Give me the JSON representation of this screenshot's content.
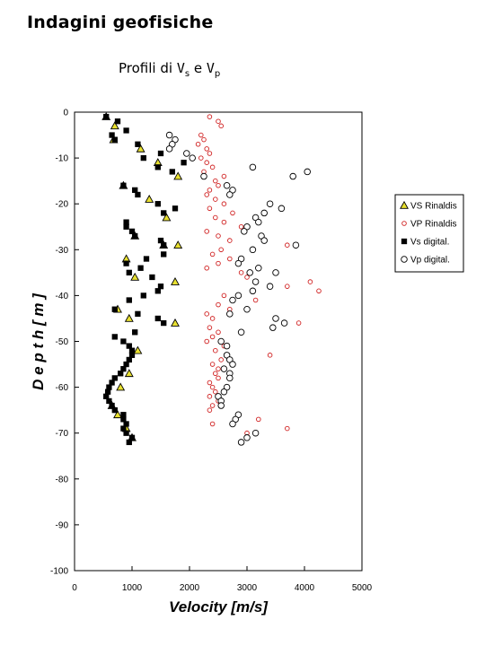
{
  "header": {
    "title": "Indagini geofisiche",
    "subtitle_prefix": "Profili di ",
    "vs_main": "V",
    "vs_sub": "s",
    "joiner": " e ",
    "vp_main": "V",
    "vp_sub": "p"
  },
  "chart_data": {
    "type": "scatter",
    "xlabel": "Velocity [m/s]",
    "ylabel": "D e p t h  [ m ]",
    "xlim": [
      0,
      5000
    ],
    "ylim": [
      -100,
      0
    ],
    "xticks": [
      "0",
      "1000",
      "2000",
      "3000",
      "4000",
      "5000"
    ],
    "yticks": [
      "0",
      "-10",
      "-20",
      "-30",
      "-40",
      "-50",
      "-60",
      "-70",
      "-80",
      "-90",
      "-100"
    ],
    "grid": false,
    "legend_position": "right",
    "series": [
      {
        "name": "VS Rinaldis",
        "marker": "triangle",
        "color": "#e8e030",
        "edge": "#000000",
        "points": [
          [
            550,
            -1
          ],
          [
            700,
            -3
          ],
          [
            680,
            -6
          ],
          [
            1150,
            -8
          ],
          [
            1450,
            -11
          ],
          [
            1800,
            -14
          ],
          [
            850,
            -16
          ],
          [
            1300,
            -19
          ],
          [
            1600,
            -23
          ],
          [
            1050,
            -27
          ],
          [
            1550,
            -29
          ],
          [
            1800,
            -29
          ],
          [
            900,
            -32
          ],
          [
            1050,
            -36
          ],
          [
            1750,
            -37
          ],
          [
            750,
            -43
          ],
          [
            950,
            -45
          ],
          [
            1750,
            -46
          ],
          [
            1100,
            -52
          ],
          [
            950,
            -57
          ],
          [
            800,
            -60
          ],
          [
            650,
            -64
          ],
          [
            750,
            -66
          ],
          [
            900,
            -69
          ],
          [
            1000,
            -71
          ]
        ]
      },
      {
        "name": "VP Rinaldis",
        "marker": "circle",
        "color": "#ffffff",
        "edge": "#d02020",
        "points": [
          [
            2350,
            -1
          ],
          [
            2500,
            -2
          ],
          [
            2550,
            -3
          ],
          [
            2200,
            -5
          ],
          [
            2250,
            -6
          ],
          [
            2150,
            -7
          ],
          [
            2300,
            -8
          ],
          [
            2350,
            -9
          ],
          [
            2200,
            -10
          ],
          [
            2300,
            -11
          ],
          [
            2400,
            -12
          ],
          [
            2250,
            -13
          ],
          [
            2600,
            -14
          ],
          [
            2450,
            -15
          ],
          [
            2500,
            -16
          ],
          [
            2350,
            -17
          ],
          [
            2300,
            -18
          ],
          [
            2450,
            -19
          ],
          [
            2600,
            -20
          ],
          [
            2350,
            -21
          ],
          [
            2750,
            -22
          ],
          [
            2450,
            -23
          ],
          [
            2600,
            -24
          ],
          [
            2900,
            -25
          ],
          [
            2300,
            -26
          ],
          [
            2500,
            -27
          ],
          [
            2700,
            -28
          ],
          [
            3700,
            -29
          ],
          [
            2550,
            -30
          ],
          [
            2400,
            -31
          ],
          [
            2700,
            -32
          ],
          [
            2500,
            -33
          ],
          [
            2300,
            -34
          ],
          [
            2900,
            -35
          ],
          [
            3000,
            -36
          ],
          [
            4100,
            -37
          ],
          [
            3700,
            -38
          ],
          [
            4250,
            -39
          ],
          [
            2600,
            -40
          ],
          [
            3150,
            -41
          ],
          [
            2500,
            -42
          ],
          [
            2700,
            -43
          ],
          [
            2300,
            -44
          ],
          [
            2400,
            -45
          ],
          [
            3900,
            -46
          ],
          [
            2350,
            -47
          ],
          [
            2500,
            -48
          ],
          [
            2400,
            -49
          ],
          [
            2300,
            -50
          ],
          [
            2600,
            -51
          ],
          [
            2450,
            -52
          ],
          [
            3400,
            -53
          ],
          [
            2550,
            -54
          ],
          [
            2400,
            -55
          ],
          [
            2500,
            -56
          ],
          [
            2450,
            -57
          ],
          [
            2500,
            -58
          ],
          [
            2350,
            -59
          ],
          [
            2400,
            -60
          ],
          [
            2450,
            -61
          ],
          [
            2350,
            -62
          ],
          [
            2500,
            -63
          ],
          [
            2400,
            -64
          ],
          [
            2350,
            -65
          ],
          [
            3200,
            -67
          ],
          [
            2400,
            -68
          ],
          [
            3700,
            -69
          ],
          [
            3000,
            -70
          ]
        ]
      },
      {
        "name": "Vs digital.",
        "marker": "square",
        "color": "#000000",
        "edge": "#000000",
        "points": [
          [
            550,
            -1
          ],
          [
            750,
            -2
          ],
          [
            650,
            -5
          ],
          [
            900,
            -4
          ],
          [
            700,
            -6
          ],
          [
            1100,
            -7
          ],
          [
            1200,
            -10
          ],
          [
            1500,
            -9
          ],
          [
            1450,
            -12
          ],
          [
            1900,
            -11
          ],
          [
            1700,
            -13
          ],
          [
            850,
            -16
          ],
          [
            1050,
            -17
          ],
          [
            1100,
            -18
          ],
          [
            1450,
            -20
          ],
          [
            1750,
            -21
          ],
          [
            1550,
            -22
          ],
          [
            900,
            -24
          ],
          [
            900,
            -25
          ],
          [
            1000,
            -26
          ],
          [
            1050,
            -27
          ],
          [
            1500,
            -28
          ],
          [
            1550,
            -29
          ],
          [
            1250,
            -32
          ],
          [
            1550,
            -31
          ],
          [
            900,
            -33
          ],
          [
            950,
            -35
          ],
          [
            1150,
            -34
          ],
          [
            1350,
            -36
          ],
          [
            1500,
            -38
          ],
          [
            1450,
            -39
          ],
          [
            1200,
            -40
          ],
          [
            950,
            -41
          ],
          [
            700,
            -43
          ],
          [
            1100,
            -44
          ],
          [
            1450,
            -45
          ],
          [
            1550,
            -46
          ],
          [
            1050,
            -48
          ],
          [
            700,
            -49
          ],
          [
            850,
            -50
          ],
          [
            950,
            -51
          ],
          [
            1000,
            -52
          ],
          [
            1000,
            -53
          ],
          [
            950,
            -54
          ],
          [
            900,
            -55
          ],
          [
            850,
            -56
          ],
          [
            800,
            -57
          ],
          [
            700,
            -58
          ],
          [
            650,
            -59
          ],
          [
            600,
            -60
          ],
          [
            580,
            -61
          ],
          [
            550,
            -62
          ],
          [
            600,
            -63
          ],
          [
            650,
            -64
          ],
          [
            700,
            -65
          ],
          [
            850,
            -66
          ],
          [
            850,
            -67
          ],
          [
            900,
            -68
          ],
          [
            850,
            -69
          ],
          [
            900,
            -70
          ],
          [
            1000,
            -71
          ],
          [
            950,
            -72
          ]
        ]
      },
      {
        "name": "Vp digital.",
        "marker": "circle",
        "color": "#ffffff",
        "edge": "#000000",
        "points": [
          [
            1650,
            -5
          ],
          [
            1750,
            -6
          ],
          [
            1700,
            -7
          ],
          [
            1650,
            -8
          ],
          [
            1950,
            -9
          ],
          [
            2050,
            -10
          ],
          [
            3100,
            -12
          ],
          [
            4050,
            -13
          ],
          [
            3800,
            -14
          ],
          [
            2250,
            -14
          ],
          [
            2650,
            -16
          ],
          [
            2750,
            -17
          ],
          [
            2700,
            -18
          ],
          [
            3400,
            -20
          ],
          [
            3600,
            -21
          ],
          [
            3300,
            -22
          ],
          [
            3150,
            -23
          ],
          [
            3200,
            -24
          ],
          [
            3000,
            -25
          ],
          [
            2950,
            -26
          ],
          [
            3250,
            -27
          ],
          [
            3300,
            -28
          ],
          [
            3850,
            -29
          ],
          [
            3100,
            -30
          ],
          [
            2900,
            -32
          ],
          [
            2850,
            -33
          ],
          [
            3200,
            -34
          ],
          [
            3050,
            -35
          ],
          [
            3500,
            -35
          ],
          [
            3150,
            -37
          ],
          [
            3400,
            -38
          ],
          [
            3100,
            -39
          ],
          [
            2850,
            -40
          ],
          [
            2750,
            -41
          ],
          [
            3000,
            -43
          ],
          [
            2700,
            -44
          ],
          [
            3500,
            -45
          ],
          [
            3650,
            -46
          ],
          [
            3450,
            -47
          ],
          [
            2900,
            -48
          ],
          [
            2550,
            -50
          ],
          [
            2650,
            -51
          ],
          [
            2650,
            -53
          ],
          [
            2700,
            -54
          ],
          [
            2750,
            -55
          ],
          [
            2600,
            -56
          ],
          [
            2700,
            -57
          ],
          [
            2700,
            -58
          ],
          [
            2650,
            -60
          ],
          [
            2600,
            -61
          ],
          [
            2500,
            -62
          ],
          [
            2550,
            -63
          ],
          [
            2550,
            -64
          ],
          [
            2850,
            -66
          ],
          [
            2800,
            -67
          ],
          [
            2750,
            -68
          ],
          [
            3150,
            -70
          ],
          [
            3000,
            -71
          ],
          [
            2900,
            -72
          ]
        ]
      }
    ]
  }
}
